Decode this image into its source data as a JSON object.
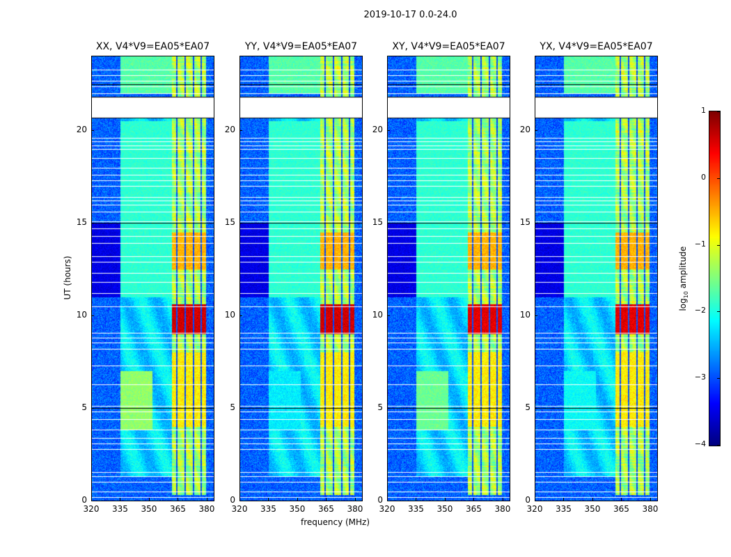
{
  "chart_data": {
    "type": "heatmap",
    "title": "2019-10-17 0.0-24.0",
    "xlabel": "frequency (MHz)",
    "ylabel": "UT (hours)",
    "xlim": [
      320,
      384
    ],
    "ylim": [
      0,
      24
    ],
    "xticks": [
      "320",
      "335",
      "350",
      "365",
      "380"
    ],
    "yticks": [
      "0",
      "5",
      "10",
      "15",
      "20"
    ],
    "panels": [
      {
        "title": "XX, V4*V9=EA05*EA07",
        "pol": "XX",
        "mid_band_level": -1.4,
        "rfi_peak_level": 0.6
      },
      {
        "title": "YY, V4*V9=EA05*EA07",
        "pol": "YY",
        "mid_band_level": -2.2,
        "rfi_peak_level": 0.6
      },
      {
        "title": "XY, V4*V9=EA05*EA07",
        "pol": "XY",
        "mid_band_level": -1.6,
        "rfi_peak_level": 0.5
      },
      {
        "title": "YX, V4*V9=EA05*EA07",
        "pol": "YX",
        "mid_band_level": -2.1,
        "rfi_peak_level": 0.5
      }
    ],
    "colorbar": {
      "label_main": "log",
      "label_sub": "10",
      "label_rest": " amplitude",
      "range": [
        -4,
        1
      ],
      "ticks": [
        "1",
        "0",
        "−1",
        "−2",
        "−3",
        "−4"
      ],
      "tick_values": [
        1,
        0,
        -1,
        -2,
        -3,
        -4
      ],
      "colormap": "jet"
    },
    "flagged_gap_hours": [
      20.7,
      21.8
    ],
    "flagged_rows_hours": [
      0.2,
      0.5,
      1.0,
      1.3,
      1.55,
      2.8,
      3.1,
      3.4,
      3.85,
      4.4,
      4.8,
      5.1,
      6.3,
      7.3,
      8.2,
      8.55,
      8.8,
      9.05,
      10.5,
      11.2,
      11.8,
      12.3,
      12.9,
      13.2,
      13.9,
      14.3,
      14.7,
      15.1,
      15.6,
      16.0,
      16.2,
      16.4,
      17.0,
      17.3,
      17.6,
      18.0,
      18.5,
      19.0,
      19.2,
      19.4,
      19.6,
      22.0,
      22.4,
      22.7,
      23.0,
      23.3
    ]
  }
}
